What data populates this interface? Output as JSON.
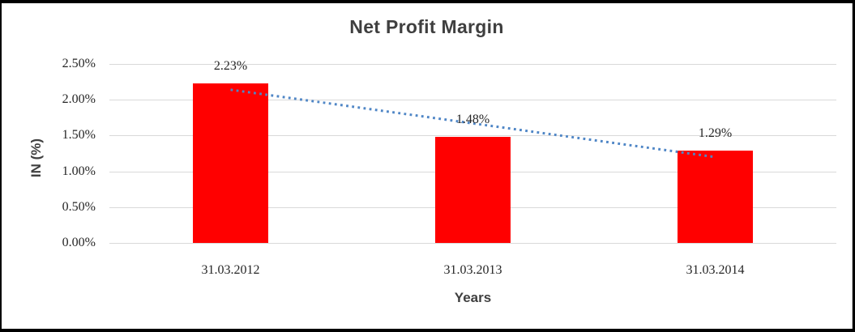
{
  "frame": {
    "outer_background": "#000000",
    "chart_background": "#ffffff"
  },
  "chart_data": {
    "type": "bar",
    "title": "Net Profit Margin",
    "xlabel": "Years",
    "ylabel": "IN (%)",
    "categories": [
      "31.03.2012",
      "31.03.2013",
      "31.03.2014"
    ],
    "series": [
      {
        "name": "Net Profit Margin",
        "values": [
          2.23,
          1.48,
          1.29
        ]
      }
    ],
    "data_labels": [
      "2.23%",
      "1.48%",
      "1.29%"
    ],
    "ylim": [
      0,
      2.5
    ],
    "ytick_step": 0.5,
    "yticks": [
      {
        "value": 0.0,
        "label": "0.00%"
      },
      {
        "value": 0.5,
        "label": "0.50%"
      },
      {
        "value": 1.0,
        "label": "1.00%"
      },
      {
        "value": 1.5,
        "label": "1.50%"
      },
      {
        "value": 2.0,
        "label": "2.00%"
      },
      {
        "value": 2.5,
        "label": "2.50%"
      }
    ],
    "grid": true,
    "legend": false,
    "trendline": {
      "type": "linear",
      "style": "dotted",
      "start_value": 2.14,
      "end_value": 1.2
    },
    "colors": {
      "bar": "#FF0000",
      "gridline": "#D9D9D9",
      "trendline": "#4F86C6",
      "heading_text": "#3F3F3F",
      "label_text": "#262626"
    }
  }
}
